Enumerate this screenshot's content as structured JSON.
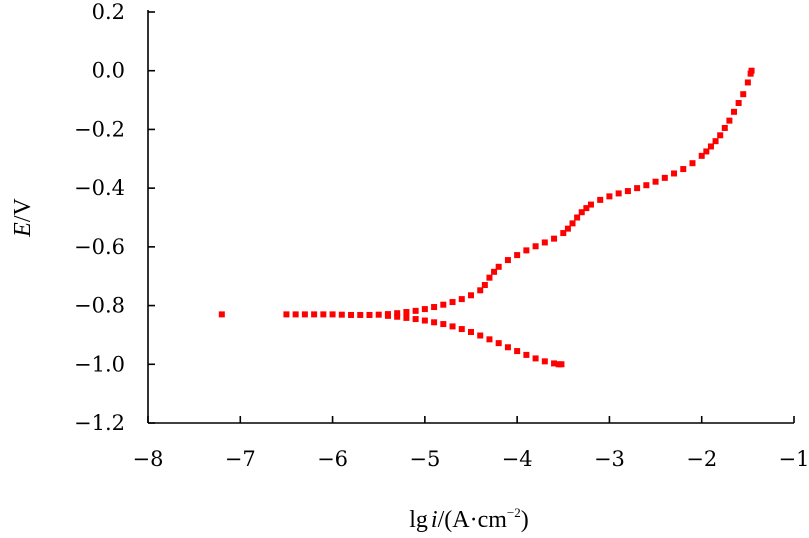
{
  "chart_data": {
    "type": "scatter",
    "title": "",
    "xlabel_parts": [
      "lg",
      "i",
      "/(A·cm",
      "−2",
      ")"
    ],
    "ylabel_parts": [
      "E",
      "/V"
    ],
    "xlim": [
      -8,
      -1
    ],
    "ylim": [
      -1.2,
      0.2
    ],
    "x_ticks": [
      -8,
      -7,
      -6,
      -5,
      -4,
      -3,
      -2,
      -1
    ],
    "x_tick_labels": [
      "−8",
      "−7",
      "−6",
      "−5",
      "−4",
      "−3",
      "−2",
      "−1"
    ],
    "y_ticks": [
      0.2,
      0.0,
      -0.2,
      -0.4,
      -0.6,
      -0.8,
      -1.0,
      -1.2
    ],
    "y_tick_labels": [
      "0.2",
      "0.0",
      "−0.2",
      "−0.4",
      "−0.6",
      "−0.8",
      "−1.0",
      "−1.2"
    ],
    "grid": false,
    "marker_color": "#ff0000",
    "series": [
      {
        "points": [
          [
            -7.2,
            -0.83
          ],
          [
            -6.5,
            -0.83
          ],
          [
            -6.4,
            -0.83
          ],
          [
            -6.3,
            -0.83
          ],
          [
            -6.2,
            -0.83
          ],
          [
            -6.1,
            -0.83
          ],
          [
            -6.0,
            -0.83
          ],
          [
            -5.9,
            -0.831
          ],
          [
            -5.8,
            -0.832
          ],
          [
            -5.7,
            -0.832
          ],
          [
            -5.6,
            -0.832
          ],
          [
            -5.5,
            -0.831
          ],
          [
            -5.4,
            -0.829
          ],
          [
            -5.3,
            -0.826
          ],
          [
            -5.2,
            -0.822
          ],
          [
            -5.1,
            -0.818
          ],
          [
            -5.0,
            -0.812
          ],
          [
            -4.9,
            -0.805
          ],
          [
            -4.8,
            -0.797
          ],
          [
            -4.7,
            -0.788
          ],
          [
            -4.6,
            -0.778
          ],
          [
            -4.5,
            -0.765
          ],
          [
            -4.4,
            -0.748
          ],
          [
            -4.35,
            -0.73
          ],
          [
            -4.3,
            -0.705
          ],
          [
            -4.25,
            -0.685
          ],
          [
            -4.2,
            -0.668
          ],
          [
            -4.1,
            -0.645
          ],
          [
            -4.0,
            -0.628
          ],
          [
            -3.9,
            -0.612
          ],
          [
            -3.8,
            -0.598
          ],
          [
            -3.7,
            -0.585
          ],
          [
            -3.6,
            -0.572
          ],
          [
            -3.5,
            -0.553
          ],
          [
            -3.45,
            -0.538
          ],
          [
            -3.4,
            -0.52
          ],
          [
            -3.35,
            -0.5
          ],
          [
            -3.3,
            -0.482
          ],
          [
            -3.25,
            -0.468
          ],
          [
            -3.2,
            -0.456
          ],
          [
            -3.1,
            -0.44
          ],
          [
            -3.0,
            -0.428
          ],
          [
            -2.9,
            -0.418
          ],
          [
            -2.8,
            -0.41
          ],
          [
            -2.7,
            -0.4
          ],
          [
            -2.6,
            -0.39
          ],
          [
            -2.5,
            -0.378
          ],
          [
            -2.4,
            -0.365
          ],
          [
            -2.3,
            -0.35
          ],
          [
            -2.2,
            -0.335
          ],
          [
            -2.1,
            -0.315
          ],
          [
            -2.0,
            -0.29
          ],
          [
            -1.95,
            -0.275
          ],
          [
            -1.9,
            -0.258
          ],
          [
            -1.85,
            -0.24
          ],
          [
            -1.8,
            -0.22
          ],
          [
            -1.75,
            -0.195
          ],
          [
            -1.7,
            -0.17
          ],
          [
            -1.65,
            -0.14
          ],
          [
            -1.6,
            -0.11
          ],
          [
            -1.55,
            -0.08
          ],
          [
            -1.5,
            -0.04
          ],
          [
            -1.47,
            -0.01
          ],
          [
            -1.46,
            0.0
          ]
        ]
      },
      {
        "points": [
          [
            -5.4,
            -0.835
          ],
          [
            -5.3,
            -0.838
          ],
          [
            -5.2,
            -0.842
          ],
          [
            -5.1,
            -0.846
          ],
          [
            -5.0,
            -0.851
          ],
          [
            -4.9,
            -0.857
          ],
          [
            -4.8,
            -0.863
          ],
          [
            -4.7,
            -0.871
          ],
          [
            -4.6,
            -0.88
          ],
          [
            -4.5,
            -0.89
          ],
          [
            -4.4,
            -0.902
          ],
          [
            -4.3,
            -0.915
          ],
          [
            -4.2,
            -0.928
          ],
          [
            -4.1,
            -0.942
          ],
          [
            -4.0,
            -0.955
          ],
          [
            -3.9,
            -0.968
          ],
          [
            -3.8,
            -0.98
          ],
          [
            -3.7,
            -0.99
          ],
          [
            -3.6,
            -0.997
          ],
          [
            -3.55,
            -1.0
          ],
          [
            -3.52,
            -1.0
          ]
        ]
      }
    ]
  }
}
